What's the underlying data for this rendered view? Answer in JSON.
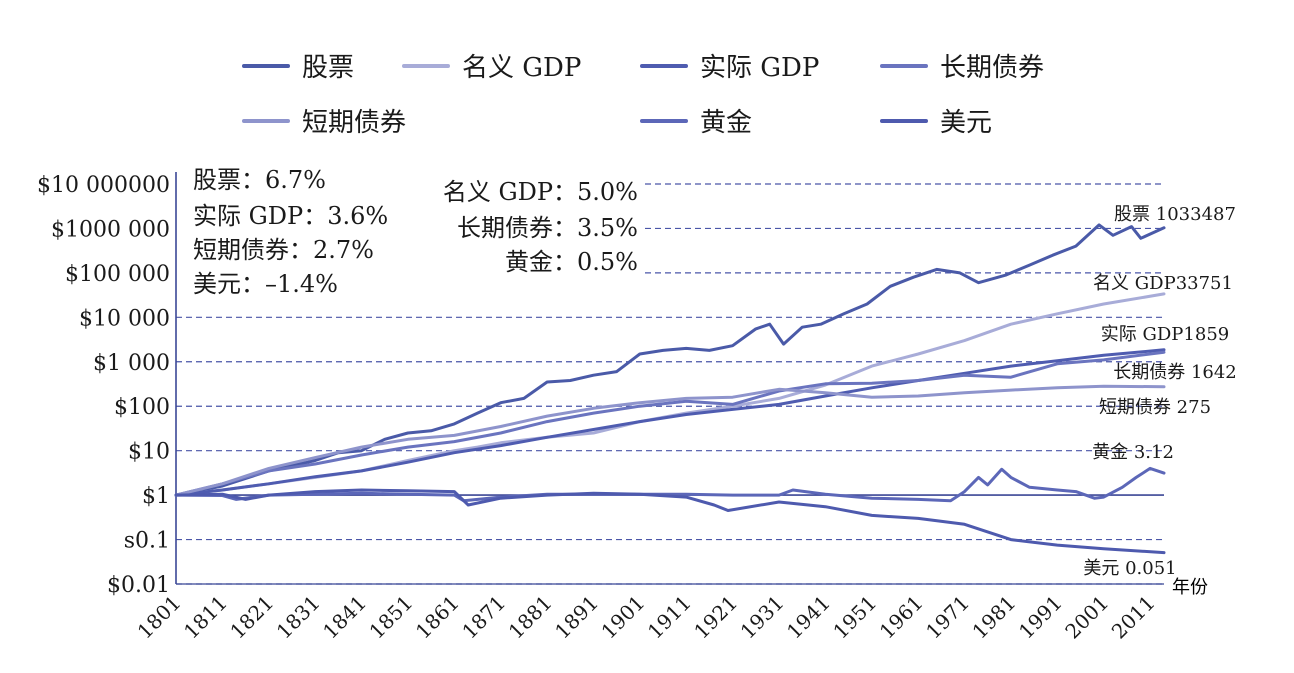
{
  "chart_data": {
    "type": "line",
    "yscale": "log",
    "xlabel": "年份",
    "ylabel": "",
    "xlim": [
      1801,
      2014
    ],
    "ylim": [
      0.01,
      10000000
    ],
    "x_ticks": [
      1801,
      1811,
      1821,
      1831,
      1841,
      1851,
      1861,
      1871,
      1881,
      1891,
      1901,
      1911,
      1921,
      1931,
      1941,
      1951,
      1961,
      1971,
      1981,
      1991,
      2001,
      2011
    ],
    "y_ticks": [
      {
        "value": 10000000,
        "label": "$10 000000"
      },
      {
        "value": 1000000,
        "label": "$1000 000"
      },
      {
        "value": 100000,
        "label": "$100 000"
      },
      {
        "value": 10000,
        "label": "$10 000"
      },
      {
        "value": 1000,
        "label": "$1 000"
      },
      {
        "value": 100,
        "label": "$100"
      },
      {
        "value": 10,
        "label": "$10"
      },
      {
        "value": 1,
        "label": "$1"
      },
      {
        "value": 0.1,
        "label": "s0.1"
      },
      {
        "value": 0.01,
        "label": "$0.01"
      }
    ],
    "grid": "dashed horizontal",
    "legend": [
      {
        "label": "股票",
        "color": "#4a5aa8"
      },
      {
        "label": "名义 GDP",
        "color": "#a8acd8"
      },
      {
        "label": "实际 GDP",
        "color": "#4f5cb0"
      },
      {
        "label": "长期债券",
        "color": "#6a74bf"
      },
      {
        "label": "短期债券",
        "color": "#8e94cc"
      },
      {
        "label": "黄金",
        "color": "#5c67b8"
      },
      {
        "label": "美元",
        "color": "#4e5aae"
      }
    ],
    "annotations_left": [
      "股票：6.7%",
      "实际 GDP：3.6%",
      "短期债券：2.7%",
      "美元：–1.4%"
    ],
    "annotations_right": [
      "名义 GDP：5.0%",
      "长期债券：3.5%",
      "黄金：0.5%"
    ],
    "series": [
      {
        "name": "股票",
        "color": "#4a5aa8",
        "end_label": "股票 1033487",
        "points": [
          [
            1801,
            1
          ],
          [
            1811,
            1.6
          ],
          [
            1821,
            3.5
          ],
          [
            1831,
            6
          ],
          [
            1836,
            9
          ],
          [
            1841,
            10
          ],
          [
            1846,
            18
          ],
          [
            1851,
            25
          ],
          [
            1856,
            28
          ],
          [
            1861,
            40
          ],
          [
            1866,
            70
          ],
          [
            1871,
            120
          ],
          [
            1876,
            150
          ],
          [
            1881,
            350
          ],
          [
            1886,
            380
          ],
          [
            1891,
            500
          ],
          [
            1896,
            600
          ],
          [
            1901,
            1500
          ],
          [
            1906,
            1800
          ],
          [
            1911,
            2000
          ],
          [
            1916,
            1800
          ],
          [
            1921,
            2300
          ],
          [
            1926,
            5500
          ],
          [
            1929,
            7000
          ],
          [
            1932,
            2500
          ],
          [
            1936,
            6000
          ],
          [
            1940,
            7000
          ],
          [
            1945,
            12000
          ],
          [
            1950,
            20000
          ],
          [
            1955,
            50000
          ],
          [
            1960,
            80000
          ],
          [
            1965,
            120000
          ],
          [
            1970,
            100000
          ],
          [
            1974,
            60000
          ],
          [
            1980,
            90000
          ],
          [
            1985,
            150000
          ],
          [
            1990,
            250000
          ],
          [
            1995,
            400000
          ],
          [
            2000,
            1200000
          ],
          [
            2003,
            700000
          ],
          [
            2007,
            1100000
          ],
          [
            2009,
            600000
          ],
          [
            2014,
            1033487
          ]
        ]
      },
      {
        "name": "名义 GDP",
        "color": "#a8acd8",
        "end_label": "名义 GDP33751",
        "points": [
          [
            1801,
            1
          ],
          [
            1811,
            1.3
          ],
          [
            1821,
            1.8
          ],
          [
            1831,
            2.5
          ],
          [
            1841,
            3.5
          ],
          [
            1851,
            6
          ],
          [
            1861,
            10
          ],
          [
            1866,
            12
          ],
          [
            1871,
            15
          ],
          [
            1881,
            20
          ],
          [
            1891,
            25
          ],
          [
            1901,
            45
          ],
          [
            1911,
            70
          ],
          [
            1921,
            100
          ],
          [
            1931,
            150
          ],
          [
            1941,
            300
          ],
          [
            1951,
            800
          ],
          [
            1961,
            1500
          ],
          [
            1971,
            3000
          ],
          [
            1981,
            7000
          ],
          [
            1991,
            12000
          ],
          [
            2001,
            20000
          ],
          [
            2014,
            33751
          ]
        ]
      },
      {
        "name": "实际 GDP",
        "color": "#4f5cb0",
        "end_label": "实际 GDP1859",
        "points": [
          [
            1801,
            1
          ],
          [
            1811,
            1.3
          ],
          [
            1821,
            1.8
          ],
          [
            1831,
            2.6
          ],
          [
            1841,
            3.5
          ],
          [
            1851,
            5.5
          ],
          [
            1861,
            9
          ],
          [
            1871,
            13
          ],
          [
            1881,
            20
          ],
          [
            1891,
            30
          ],
          [
            1901,
            45
          ],
          [
            1911,
            65
          ],
          [
            1921,
            85
          ],
          [
            1931,
            110
          ],
          [
            1941,
            170
          ],
          [
            1951,
            260
          ],
          [
            1961,
            380
          ],
          [
            1971,
            550
          ],
          [
            1981,
            800
          ],
          [
            1991,
            1050
          ],
          [
            2001,
            1400
          ],
          [
            2014,
            1859
          ]
        ]
      },
      {
        "name": "长期债券",
        "color": "#6a74bf",
        "end_label": "长期债券 1642",
        "points": [
          [
            1801,
            1
          ],
          [
            1811,
            1.8
          ],
          [
            1821,
            3.5
          ],
          [
            1831,
            5
          ],
          [
            1841,
            8
          ],
          [
            1851,
            12
          ],
          [
            1861,
            16
          ],
          [
            1871,
            25
          ],
          [
            1881,
            45
          ],
          [
            1891,
            70
          ],
          [
            1901,
            100
          ],
          [
            1911,
            130
          ],
          [
            1921,
            110
          ],
          [
            1931,
            220
          ],
          [
            1941,
            320
          ],
          [
            1951,
            330
          ],
          [
            1961,
            380
          ],
          [
            1971,
            500
          ],
          [
            1981,
            450
          ],
          [
            1991,
            900
          ],
          [
            2001,
            1100
          ],
          [
            2014,
            1642
          ]
        ]
      },
      {
        "name": "短期债券",
        "color": "#8e94cc",
        "end_label": "短期债券 275",
        "points": [
          [
            1801,
            1
          ],
          [
            1811,
            1.8
          ],
          [
            1821,
            4
          ],
          [
            1831,
            7
          ],
          [
            1841,
            12
          ],
          [
            1851,
            18
          ],
          [
            1861,
            22
          ],
          [
            1871,
            35
          ],
          [
            1881,
            60
          ],
          [
            1891,
            90
          ],
          [
            1901,
            120
          ],
          [
            1911,
            150
          ],
          [
            1921,
            160
          ],
          [
            1931,
            240
          ],
          [
            1941,
            200
          ],
          [
            1951,
            160
          ],
          [
            1961,
            170
          ],
          [
            1971,
            200
          ],
          [
            1981,
            230
          ],
          [
            1991,
            260
          ],
          [
            2001,
            280
          ],
          [
            2014,
            275
          ]
        ]
      },
      {
        "name": "黄金",
        "color": "#5c67b8",
        "end_label": "黄金 3.12",
        "points": [
          [
            1801,
            1
          ],
          [
            1811,
            0.98
          ],
          [
            1814,
            0.8
          ],
          [
            1821,
            1
          ],
          [
            1831,
            1.05
          ],
          [
            1841,
            1.1
          ],
          [
            1851,
            1.05
          ],
          [
            1861,
            1
          ],
          [
            1863,
            0.75
          ],
          [
            1871,
            0.9
          ],
          [
            1881,
            1.05
          ],
          [
            1891,
            1.05
          ],
          [
            1901,
            1.05
          ],
          [
            1911,
            1.05
          ],
          [
            1921,
            1
          ],
          [
            1931,
            1
          ],
          [
            1934,
            1.3
          ],
          [
            1941,
            1.05
          ],
          [
            1951,
            0.85
          ],
          [
            1961,
            0.8
          ],
          [
            1968,
            0.75
          ],
          [
            1971,
            1.2
          ],
          [
            1974,
            2.5
          ],
          [
            1976,
            1.7
          ],
          [
            1979,
            3.8
          ],
          [
            1981,
            2.5
          ],
          [
            1985,
            1.5
          ],
          [
            1991,
            1.3
          ],
          [
            1995,
            1.2
          ],
          [
            1999,
            0.85
          ],
          [
            2001,
            0.9
          ],
          [
            2005,
            1.5
          ],
          [
            2008,
            2.5
          ],
          [
            2011,
            4
          ],
          [
            2014,
            3.12
          ]
        ]
      },
      {
        "name": "美元",
        "color": "#4e5aae",
        "end_label": "美元 0.051",
        "points": [
          [
            1801,
            1
          ],
          [
            1811,
            1.05
          ],
          [
            1816,
            0.8
          ],
          [
            1821,
            1
          ],
          [
            1831,
            1.2
          ],
          [
            1841,
            1.3
          ],
          [
            1851,
            1.25
          ],
          [
            1861,
            1.2
          ],
          [
            1864,
            0.6
          ],
          [
            1871,
            0.85
          ],
          [
            1881,
            1
          ],
          [
            1891,
            1.1
          ],
          [
            1901,
            1.05
          ],
          [
            1911,
            0.9
          ],
          [
            1917,
            0.6
          ],
          [
            1920,
            0.45
          ],
          [
            1931,
            0.7
          ],
          [
            1941,
            0.55
          ],
          [
            1951,
            0.35
          ],
          [
            1961,
            0.3
          ],
          [
            1971,
            0.22
          ],
          [
            1981,
            0.1
          ],
          [
            1991,
            0.075
          ],
          [
            2001,
            0.062
          ],
          [
            2014,
            0.051
          ]
        ]
      }
    ]
  }
}
